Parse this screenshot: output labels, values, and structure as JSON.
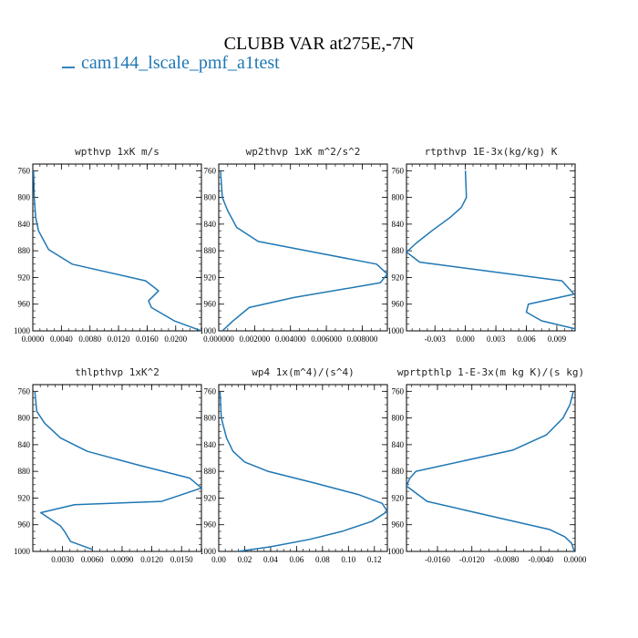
{
  "title": "CLUBB VAR at275E,-7N",
  "legend": {
    "label": "cam144_lscale_pmf_a1test",
    "color": "#1f77b4"
  },
  "line_color": "#1f77b4",
  "chart_data": [
    {
      "type": "line",
      "title": "wpthvp  1xK m/s",
      "xlim": [
        0,
        0.0236
      ],
      "xticks": [
        0,
        0.004,
        0.008,
        0.012,
        0.016,
        0.02
      ],
      "xtick_labels": [
        "0.0000",
        "0.0040",
        "0.0080",
        "0.0120",
        "0.0160",
        "0.0200"
      ],
      "ylim": [
        750,
        1000
      ],
      "yticks": [
        760,
        800,
        840,
        880,
        920,
        960,
        1000
      ],
      "x": [
        0.0001,
        0.0002,
        0.0004,
        0.0008,
        0.0014,
        0.0022,
        0.0055,
        0.0158,
        0.0176,
        0.0162,
        0.0166,
        0.0198,
        0.0236
      ],
      "y": [
        760,
        800,
        830,
        850,
        862,
        878,
        900,
        925,
        940,
        955,
        965,
        985,
        1000
      ]
    },
    {
      "type": "line",
      "title": "wp2thvp  1xK m^2/s^2",
      "xlim": [
        0,
        0.0094
      ],
      "xticks": [
        0,
        0.002,
        0.004,
        0.006,
        0.008
      ],
      "xtick_labels": [
        "0.000000",
        "0.002000",
        "0.004000",
        "0.006000",
        "0.008000"
      ],
      "ylim": [
        750,
        1000
      ],
      "yticks": [
        760,
        800,
        840,
        880,
        920,
        960,
        1000
      ],
      "x": [
        0.0001,
        0.0002,
        0.0005,
        0.001,
        0.0022,
        0.0055,
        0.0088,
        0.0094,
        0.009,
        0.0042,
        0.0017,
        0.0008,
        0.0002
      ],
      "y": [
        760,
        800,
        820,
        845,
        866,
        883,
        900,
        915,
        928,
        950,
        965,
        985,
        1000
      ]
    },
    {
      "type": "line",
      "title": "rtpthvp  1E-3x(kg/kg) K",
      "xlim": [
        -0.0058,
        0.0108
      ],
      "xticks": [
        -0.003,
        0,
        0.003,
        0.006,
        0.009
      ],
      "xtick_labels": [
        "-0.003",
        "0.000",
        "0.003",
        "0.006",
        "0.009"
      ],
      "ylim": [
        750,
        1000
      ],
      "yticks": [
        760,
        800,
        840,
        880,
        920,
        960,
        1000
      ],
      "x": [
        0,
        0.0001,
        -0.0004,
        -0.0015,
        -0.0033,
        -0.0048,
        -0.0058,
        -0.0045,
        0.0095,
        0.0107,
        0.0062,
        0.006,
        0.0075,
        0.0108
      ],
      "y": [
        760,
        800,
        815,
        830,
        850,
        868,
        882,
        897,
        925,
        945,
        960,
        972,
        985,
        997
      ]
    },
    {
      "type": "line",
      "title": "thlpthvp  1xK^2",
      "xlim": [
        0,
        0.017
      ],
      "xticks": [
        0.003,
        0.006,
        0.009,
        0.012,
        0.015
      ],
      "xtick_labels": [
        "0.0030",
        "0.0060",
        "0.0090",
        "0.0120",
        "0.0150"
      ],
      "ylim": [
        750,
        1000
      ],
      "yticks": [
        760,
        800,
        840,
        880,
        920,
        960,
        1000
      ],
      "x": [
        0.0002,
        0.0004,
        0.0012,
        0.0028,
        0.0055,
        0.0105,
        0.0158,
        0.017,
        0.013,
        0.0042,
        0.0008,
        0.0028,
        0.0032,
        0.0038,
        0.006
      ],
      "y": [
        760,
        790,
        808,
        830,
        850,
        870,
        890,
        905,
        925,
        930,
        942,
        962,
        970,
        985,
        997
      ]
    },
    {
      "type": "line",
      "title": "wp4  1x(m^4)/(s^4)",
      "xlim": [
        0,
        0.13
      ],
      "xticks": [
        0,
        0.02,
        0.04,
        0.06,
        0.08,
        0.1,
        0.12
      ],
      "xtick_labels": [
        "0.00",
        "0.02",
        "0.04",
        "0.06",
        "0.08",
        "0.10",
        "0.12"
      ],
      "ylim": [
        750,
        1000
      ],
      "yticks": [
        760,
        800,
        840,
        880,
        920,
        960,
        1000
      ],
      "x": [
        0.001,
        0.002,
        0.006,
        0.011,
        0.02,
        0.038,
        0.075,
        0.108,
        0.126,
        0.13,
        0.118,
        0.095,
        0.07,
        0.04,
        0.015
      ],
      "y": [
        760,
        800,
        830,
        850,
        866,
        880,
        898,
        915,
        928,
        940,
        955,
        970,
        982,
        993,
        1000
      ]
    },
    {
      "type": "line",
      "title": "wprtpthlp  1-E-3x(m kg K)/(s kg)",
      "xlim": [
        -0.0196,
        0
      ],
      "xticks": [
        -0.016,
        -0.012,
        -0.008,
        -0.004,
        0
      ],
      "xtick_labels": [
        "-0.0160",
        "-0.0120",
        "-0.0080",
        "-0.0040",
        "0.0000"
      ],
      "ylim": [
        750,
        1000
      ],
      "yticks": [
        760,
        800,
        840,
        880,
        920,
        960,
        1000
      ],
      "x": [
        -0.0002,
        -0.0006,
        -0.0014,
        -0.0033,
        -0.0072,
        -0.0185,
        -0.0192,
        -0.0196,
        -0.0172,
        -0.0088,
        -0.003,
        -0.0012,
        -0.0004,
        -0.0002,
        -0.0001
      ],
      "y": [
        760,
        780,
        800,
        825,
        848,
        880,
        890,
        902,
        925,
        950,
        967,
        978,
        988,
        996,
        1000
      ]
    }
  ]
}
